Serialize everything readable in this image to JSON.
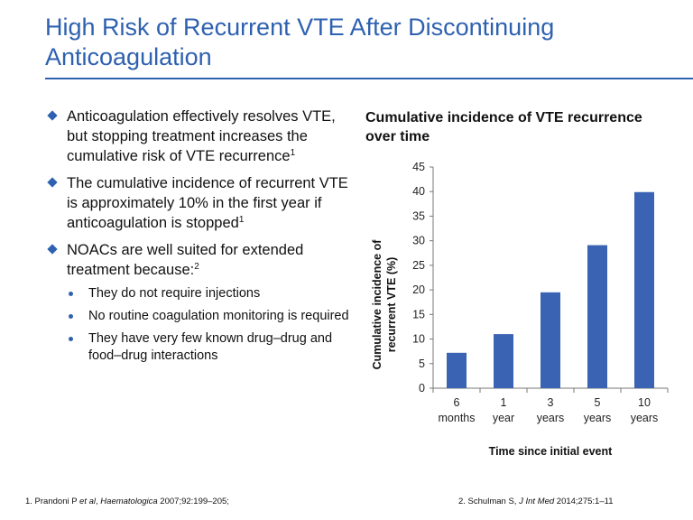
{
  "slide": {
    "title": "High Risk of Recurrent VTE After Discontinuing Anticoagulation"
  },
  "bullets": [
    {
      "text": "Anticoagulation effectively resolves VTE, but stopping treatment increases the cumulative risk of VTE recurrence",
      "sup": "1"
    },
    {
      "text": "The cumulative incidence of recurrent VTE is approximately 10% in the first year if anticoagulation is stopped",
      "sup": "1"
    },
    {
      "text": "NOACs are well suited for extended treatment because:",
      "sup": "2",
      "sub": [
        "They do not require injections",
        "No routine coagulation monitoring is required",
        "They have very few known drug–drug and food–drug interactions"
      ]
    }
  ],
  "footnotes": {
    "ref1": {
      "pre": "1. Prandoni P ",
      "italic1": "et al",
      "mid": ", ",
      "italic2": "Haematologica",
      "post": " 2007;92:199–205;"
    },
    "ref2": {
      "pre": "2. Schulman S, ",
      "italic": "J Int Med",
      "post": " 2014;275:1–11"
    }
  },
  "chart_data": {
    "type": "bar",
    "title": "Cumulative incidence of VTE recurrence over time",
    "categories": [
      [
        "6",
        "months"
      ],
      [
        "1",
        "year"
      ],
      [
        "3",
        "years"
      ],
      [
        "5",
        "years"
      ],
      [
        "10",
        "years"
      ]
    ],
    "values": [
      7.2,
      11.0,
      19.5,
      29.1,
      39.9
    ],
    "ylabel": [
      "Cumulative incidence of",
      "recurrent VTE (%)"
    ],
    "xlabel": "Time since initial event",
    "ylim": [
      0,
      45
    ],
    "yticks": [
      0,
      5,
      10,
      15,
      20,
      25,
      30,
      35,
      40,
      45
    ],
    "bar_color": "#3a63b3",
    "grid": false,
    "legend": "none"
  },
  "colors": {
    "title": "#2e61b0",
    "bullet": "#2e61b0"
  }
}
